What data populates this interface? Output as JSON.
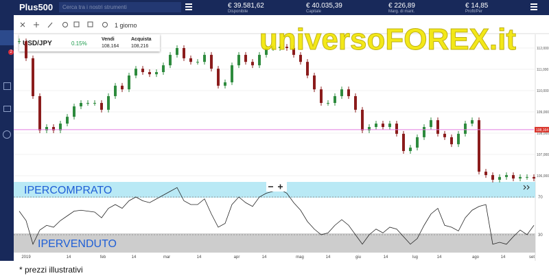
{
  "header": {
    "logo": "Plus500",
    "search_placeholder": "Cerca tra i nostri strumenti",
    "stats": [
      {
        "value": "€ 39.581,62",
        "label": "Disponibile"
      },
      {
        "value": "€ 40.035,39",
        "label": "Capitale"
      },
      {
        "value": "€ 226,89",
        "label": "Marg. di mant."
      },
      {
        "value": "€ 14,85",
        "label": "Profit/Per"
      }
    ]
  },
  "sidebar_badge": "2",
  "toolbar": {
    "period": "1 giorno"
  },
  "instrument": {
    "symbol": "USD/JPY",
    "change": "0.15%",
    "sell_label": "Vendi",
    "sell_price": "108,164",
    "buy_label": "Acquista",
    "buy_price": "108,216"
  },
  "watermark": "universoFOREX.it",
  "price_chart": {
    "closes": [
      112.32,
      111.52,
      109.74,
      108.13,
      108.29,
      108.13,
      108.45,
      108.77,
      109.26,
      109.42,
      109.42,
      109.42,
      109.1,
      109.74,
      110.23,
      110.06,
      110.71,
      111.03,
      110.87,
      110.77,
      110.87,
      111.19,
      111.68,
      112.0,
      111.52,
      111.35,
      111.35,
      111.68,
      111.03,
      110.23,
      110.39,
      111.19,
      111.68,
      111.35,
      111.19,
      111.68,
      112.0,
      112.0,
      112.06,
      112.0,
      111.68,
      111.35,
      110.71,
      110.06,
      109.42,
      109.42,
      109.74,
      110.06,
      109.74,
      109.1,
      108.13,
      108.29,
      108.45,
      108.29,
      108.45,
      107.97,
      107.16,
      107.32,
      107.81,
      108.29,
      108.61,
      107.97,
      107.81,
      107.48,
      107.97,
      108.45,
      108.61,
      106.19,
      106.03,
      105.81,
      105.94,
      106.03,
      105.87,
      105.94,
      105.94,
      105.87
    ],
    "yticks": [
      {
        "value": 112,
        "label": "112,000"
      },
      {
        "value": 111,
        "label": "111,000"
      },
      {
        "value": 110,
        "label": "110,000"
      },
      {
        "value": 109,
        "label": "109,000"
      },
      {
        "value": 108,
        "label": "108,000"
      },
      {
        "value": 107,
        "label": "107,000"
      },
      {
        "value": 106,
        "label": "106,000"
      }
    ],
    "current_price": {
      "value": 108.164,
      "label": "108,164"
    }
  },
  "rsi": {
    "values": [
      55,
      45,
      20,
      35,
      40,
      38,
      45,
      50,
      55,
      56,
      55,
      54,
      48,
      58,
      62,
      58,
      66,
      70,
      66,
      64,
      68,
      72,
      76,
      80,
      66,
      62,
      62,
      68,
      52,
      38,
      42,
      62,
      70,
      64,
      60,
      70,
      74,
      76,
      78,
      74,
      64,
      56,
      44,
      36,
      30,
      32,
      40,
      46,
      40,
      30,
      20,
      30,
      36,
      32,
      38,
      36,
      28,
      20,
      26,
      40,
      52,
      58,
      40,
      38,
      34,
      48,
      56,
      60,
      62,
      20,
      22,
      20,
      28,
      35,
      30,
      40
    ],
    "yticks": [
      70,
      30
    ],
    "overbought_label": "IPERCOMPRATO",
    "oversold_label": "IPERVENDUTO"
  },
  "x_labels": [
    "2019",
    "14",
    "feb",
    "14",
    "mar",
    "14",
    "apr",
    "14",
    "mag",
    "14",
    "giu",
    "14",
    "lug",
    "14",
    "ago",
    "14",
    "set"
  ],
  "footnote": "* prezzi illustrativi"
}
